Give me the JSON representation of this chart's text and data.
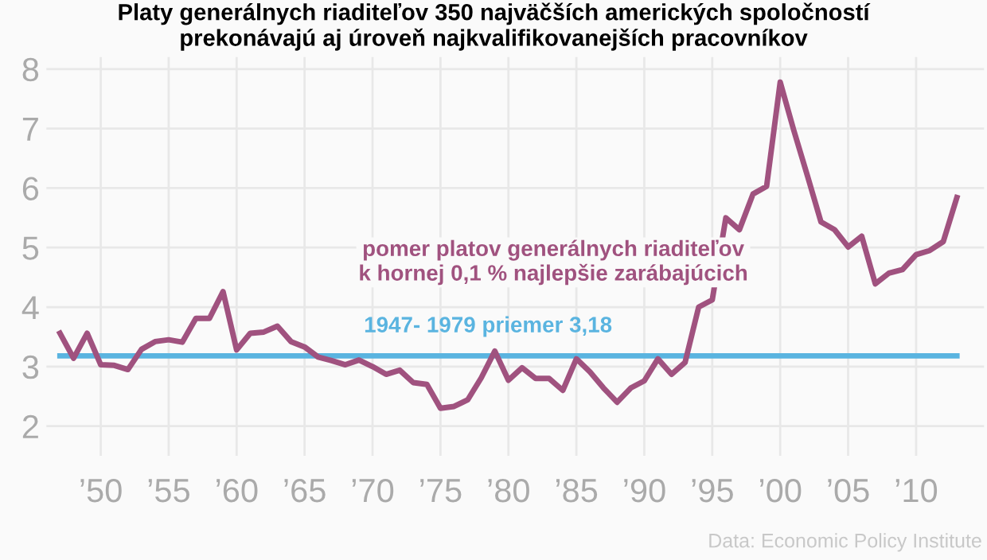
{
  "chart_data": {
    "type": "line",
    "title": "Platy generálnych riaditeľov 350 najväčších amerických spoločností\nprekonávajú aj úroveň najkvalifikovanejších pracovníkov",
    "x": [
      1947,
      1948,
      1949,
      1950,
      1951,
      1952,
      1953,
      1954,
      1955,
      1956,
      1957,
      1958,
      1959,
      1960,
      1961,
      1962,
      1963,
      1964,
      1965,
      1966,
      1967,
      1968,
      1969,
      1970,
      1971,
      1972,
      1973,
      1974,
      1975,
      1976,
      1977,
      1978,
      1979,
      1980,
      1981,
      1982,
      1983,
      1984,
      1985,
      1986,
      1987,
      1988,
      1989,
      1990,
      1991,
      1992,
      1993,
      1994,
      1995,
      1996,
      1997,
      1998,
      1999,
      2000,
      2001,
      2002,
      2003,
      2004,
      2005,
      2006,
      2007,
      2008,
      2009,
      2010,
      2011,
      2012,
      2013
    ],
    "series": [
      {
        "name": "pomer platov generálnych riaditeľov\nk hornej 0,1 % najlepšie zarábajúcich",
        "color": "#a0527f",
        "values": [
          3.56,
          3.14,
          3.56,
          3.03,
          3.02,
          2.95,
          3.29,
          3.42,
          3.45,
          3.41,
          3.81,
          3.81,
          4.26,
          3.28,
          3.56,
          3.58,
          3.68,
          3.42,
          3.33,
          3.16,
          3.1,
          3.03,
          3.11,
          3.0,
          2.87,
          2.94,
          2.73,
          2.7,
          2.3,
          2.33,
          2.44,
          2.81,
          3.26,
          2.77,
          2.98,
          2.8,
          2.8,
          2.6,
          3.13,
          2.91,
          2.64,
          2.4,
          2.64,
          2.76,
          3.13,
          2.87,
          3.07,
          4.0,
          4.12,
          5.5,
          5.3,
          5.9,
          6.03,
          7.78,
          6.97,
          6.21,
          5.43,
          5.3,
          5.01,
          5.19,
          4.39,
          4.57,
          4.63,
          4.88,
          4.95,
          5.1,
          5.84
        ]
      }
    ],
    "ref_lines": [
      {
        "axis": "y",
        "value": 3.18,
        "label": "1947- 1979 priemer 3,18",
        "color": "#5ab4e0"
      }
    ],
    "xlim": [
      1946,
      2015
    ],
    "xticks": [
      {
        "value": 1950,
        "label": "’50"
      },
      {
        "value": 1955,
        "label": "’55"
      },
      {
        "value": 1960,
        "label": "’60"
      },
      {
        "value": 1965,
        "label": "’65"
      },
      {
        "value": 1970,
        "label": "’70"
      },
      {
        "value": 1975,
        "label": "’75"
      },
      {
        "value": 1980,
        "label": "’80"
      },
      {
        "value": 1985,
        "label": "’85"
      },
      {
        "value": 1990,
        "label": "’90"
      },
      {
        "value": 1995,
        "label": "’95"
      },
      {
        "value": 2000,
        "label": "’00"
      },
      {
        "value": 2005,
        "label": "’05"
      },
      {
        "value": 2010,
        "label": "’10"
      }
    ],
    "ylim": [
      1.5,
      8.2
    ],
    "yticks": [
      2,
      3,
      4,
      5,
      6,
      7,
      8
    ],
    "grid": true,
    "legend": false,
    "marker": "none",
    "line_style": "solid",
    "annotations": [
      "Data: Economic Policy Institute"
    ]
  }
}
